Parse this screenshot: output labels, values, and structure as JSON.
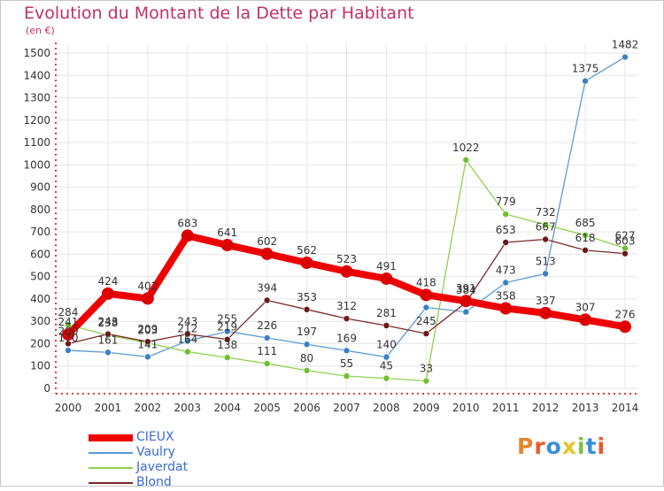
{
  "title": "Evolution du Montant de la Dette par Habitant",
  "subtitle": "(en €)",
  "brand": "Proxiti",
  "brand_colors": [
    "#e8842a",
    "#e85a2a",
    "#3a8fd6",
    "#e8c42a",
    "#7ac142",
    "#3a8fd6",
    "#e85a2a"
  ],
  "colors": {
    "CIEUX": "#ee0000",
    "Vaulry": "#5b9bd5",
    "Javerdat": "#8fd14f",
    "Blond": "#7a2a2a",
    "marker_cieux": "#dd0000",
    "marker_vaulry": "#3b7fc4",
    "marker_javerdat": "#6fbf2f",
    "marker_blond": "#6a1a1a",
    "axis_dash": "#cc0000",
    "grid": "#e6e6e6"
  },
  "chart_data": {
    "type": "line",
    "title": "Evolution du Montant de la Dette par Habitant",
    "ylabel": "(en €)",
    "xlabel": "",
    "x": [
      2000,
      2001,
      2002,
      2003,
      2004,
      2005,
      2006,
      2007,
      2008,
      2009,
      2010,
      2011,
      2012,
      2013,
      2014
    ],
    "ylim": [
      0,
      1500
    ],
    "yticks": [
      0,
      100,
      200,
      300,
      400,
      500,
      600,
      700,
      800,
      900,
      1000,
      1100,
      1200,
      1300,
      1400,
      1500
    ],
    "grid": true,
    "legend_position": "bottom-left",
    "series": [
      {
        "name": "CIEUX",
        "values": [
          241,
          424,
          402,
          683,
          641,
          602,
          562,
          523,
          491,
          418,
          391,
          358,
          337,
          307,
          276
        ]
      },
      {
        "name": "Vaulry",
        "values": [
          170,
          161,
          141,
          212,
          255,
          226,
          197,
          169,
          140,
          362,
          342,
          473,
          513,
          1375,
          1482
        ]
      },
      {
        "name": "Javerdat",
        "values": [
          284,
          238,
          203,
          164,
          138,
          111,
          80,
          55,
          45,
          33,
          1022,
          779,
          732,
          685,
          627
        ]
      },
      {
        "name": "Blond",
        "values": [
          200,
          243,
          209,
          243,
          219,
          394,
          353,
          312,
          281,
          245,
          384,
          653,
          667,
          618,
          603
        ]
      }
    ],
    "point_labels": {
      "CIEUX": [
        "241",
        "424",
        "402",
        "683",
        "641",
        "602",
        "562",
        "523",
        "491",
        "418",
        "391",
        "358",
        "337",
        "307",
        "276"
      ],
      "Vaulry": [
        "170",
        "161",
        "141",
        "212",
        "255",
        "226",
        "197",
        "169",
        "140",
        "",
        "",
        "473",
        "513",
        "1375",
        "1482"
      ],
      "Javerdat": [
        "284",
        "238",
        "203",
        "164",
        "138",
        "111",
        "80",
        "55",
        "45",
        "33",
        "1022",
        "779",
        "732",
        "685",
        "627"
      ],
      "Blond": [
        "200",
        "243",
        "209",
        "243",
        "219",
        "394",
        "353",
        "312",
        "281",
        "245",
        "384",
        "653",
        "667",
        "618",
        "603"
      ]
    }
  }
}
